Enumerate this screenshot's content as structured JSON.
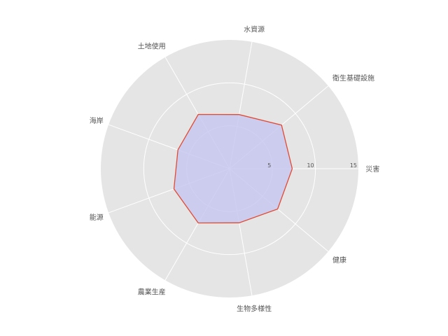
{
  "chart_data": {
    "type": "radar",
    "categories": [
      "災害",
      "衛生基礎設施",
      "水資源",
      "土地使用",
      "海岸",
      "能源",
      "農業生産",
      "生物多様性",
      "健康"
    ],
    "series": [
      {
        "values": [
          7.3,
          7.9,
          6.4,
          7.3,
          6.4,
          6.9,
          7.3,
          6.4,
          7.3
        ]
      }
    ],
    "rlim": [
      0,
      15
    ],
    "rticks": [
      5,
      10,
      15
    ],
    "rtick_labels": [
      "5",
      "10",
      "15"
    ],
    "grid": true,
    "colors": {
      "background": "#e5e5e5",
      "grid": "#ffffff",
      "line": "#e24a33",
      "fill": "#c8c8f0"
    }
  }
}
